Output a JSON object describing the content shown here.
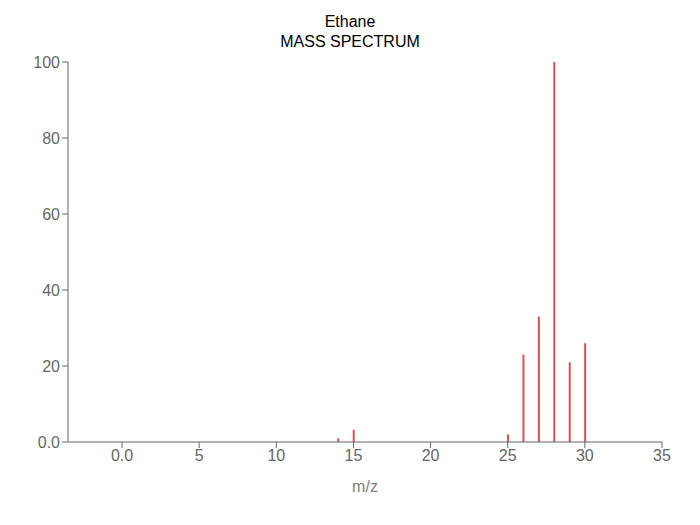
{
  "chart_data": {
    "type": "bar",
    "title": "Ethane",
    "subtitle": "MASS SPECTRUM",
    "xlabel": "m/z",
    "x": [
      14,
      15,
      25,
      26,
      27,
      28,
      29,
      30
    ],
    "values": [
      1.0,
      3.2,
      2.0,
      23.0,
      33.0,
      100.0,
      21.0,
      26.0
    ],
    "color": "#e05050",
    "xlim": [
      -3.5,
      35
    ],
    "ylim": [
      0,
      100
    ],
    "xticks": [
      {
        "value": 0,
        "label": "0.0"
      },
      5,
      10,
      15,
      20,
      25,
      30,
      35
    ],
    "yticks": [
      {
        "value": 0,
        "label": "0.0"
      },
      20,
      40,
      60,
      80,
      100
    ],
    "grid": false
  }
}
